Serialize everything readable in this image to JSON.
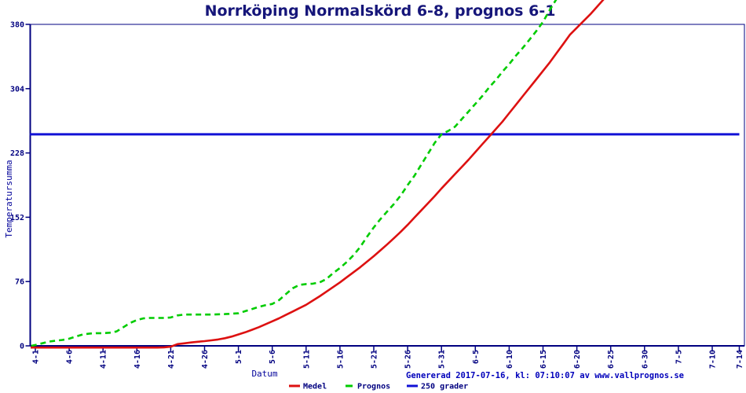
{
  "title": "Norrköping Normalskörd 6-8, prognos 6-1",
  "footer": "Genererad 2017-07-16, kl: 07:10:07 av www.vallprognos.se",
  "colors": {
    "axis": "#000080",
    "title_text": "#16167a",
    "footer_text": "#0000bb",
    "medel": "#dd1111",
    "prognos": "#00cc00",
    "threshold": "#1111d6"
  },
  "legend": {
    "items": [
      {
        "label": "Medel",
        "color": "#dd1111",
        "style": "solid"
      },
      {
        "label": "Prognos",
        "color": "#00cc00",
        "style": "dashed"
      },
      {
        "label": "250 grader",
        "color": "#1111d6",
        "style": "solid"
      }
    ]
  },
  "chart_data": {
    "type": "line",
    "title": "Norrköping Normalskörd 6-8, prognos 6-1",
    "xlabel": "Datum",
    "ylabel": "Temperatursumma",
    "ylim": [
      0,
      380
    ],
    "yticks": [
      0,
      76,
      152,
      228,
      304,
      380
    ],
    "grid": false,
    "legend_position": "bottom",
    "x_unit": "days since 4-1 (month-day)",
    "xticks": [
      {
        "label": "4-1",
        "day": 0
      },
      {
        "label": "4-6",
        "day": 5
      },
      {
        "label": "4-11",
        "day": 10
      },
      {
        "label": "4-16",
        "day": 15
      },
      {
        "label": "4-21",
        "day": 20
      },
      {
        "label": "4-26",
        "day": 25
      },
      {
        "label": "5-1",
        "day": 30
      },
      {
        "label": "5-6",
        "day": 35
      },
      {
        "label": "5-11",
        "day": 40
      },
      {
        "label": "5-16",
        "day": 45
      },
      {
        "label": "5-21",
        "day": 50
      },
      {
        "label": "5-26",
        "day": 55
      },
      {
        "label": "5-31",
        "day": 60
      },
      {
        "label": "6-5",
        "day": 65
      },
      {
        "label": "6-10",
        "day": 70
      },
      {
        "label": "6-15",
        "day": 75
      },
      {
        "label": "6-20",
        "day": 80
      },
      {
        "label": "6-25",
        "day": 85
      },
      {
        "label": "6-30",
        "day": 90
      },
      {
        "label": "7-5",
        "day": 95
      },
      {
        "label": "7-10",
        "day": 100
      },
      {
        "label": "7-14",
        "day": 104
      }
    ],
    "series": [
      {
        "name": "Medel",
        "color": "#dd1111",
        "style": "solid",
        "width": 2.6,
        "points": [
          [
            -0.7,
            0
          ],
          [
            5,
            0
          ],
          [
            10,
            0
          ],
          [
            15,
            0
          ],
          [
            18,
            0
          ],
          [
            19,
            0.3
          ],
          [
            20,
            1
          ],
          [
            21,
            2
          ],
          [
            22,
            3
          ],
          [
            23,
            4
          ],
          [
            24,
            4.8
          ],
          [
            25,
            5.6
          ],
          [
            26,
            6.5
          ],
          [
            27,
            7.5
          ],
          [
            28,
            9
          ],
          [
            29,
            11
          ],
          [
            30,
            13.5
          ],
          [
            31,
            16
          ],
          [
            32,
            19
          ],
          [
            33,
            22
          ],
          [
            34,
            25.5
          ],
          [
            35,
            29
          ],
          [
            36,
            32.5
          ],
          [
            37,
            36.5
          ],
          [
            38,
            40.5
          ],
          [
            39,
            44.5
          ],
          [
            40,
            48.5
          ],
          [
            41,
            53.5
          ],
          [
            42,
            58.5
          ],
          [
            43,
            64
          ],
          [
            44,
            69.5
          ],
          [
            45,
            75
          ],
          [
            46,
            81
          ],
          [
            47,
            87
          ],
          [
            48,
            93
          ],
          [
            49,
            99.5
          ],
          [
            50,
            106
          ],
          [
            51,
            113
          ],
          [
            52,
            120
          ],
          [
            53,
            127.5
          ],
          [
            54,
            135
          ],
          [
            55,
            143
          ],
          [
            56,
            151.5
          ],
          [
            57,
            160
          ],
          [
            58,
            168.5
          ],
          [
            59,
            177
          ],
          [
            60,
            186
          ],
          [
            61,
            194.5
          ],
          [
            62,
            203
          ],
          [
            63,
            211.5
          ],
          [
            64,
            220
          ],
          [
            65,
            229
          ],
          [
            66,
            238
          ],
          [
            67,
            247
          ],
          [
            68,
            256
          ],
          [
            69,
            265
          ],
          [
            70,
            275
          ],
          [
            71,
            285
          ],
          [
            72,
            295
          ],
          [
            73,
            305
          ],
          [
            74,
            315
          ],
          [
            75,
            325
          ],
          [
            76,
            335
          ],
          [
            77,
            346
          ],
          [
            78,
            357
          ],
          [
            79,
            368
          ],
          [
            80,
            376
          ],
          [
            81,
            384
          ],
          [
            82,
            392
          ],
          [
            83,
            401
          ],
          [
            84,
            410
          ]
        ]
      },
      {
        "name": "Prognos",
        "color": "#00cc00",
        "style": "dashed",
        "width": 2.6,
        "points": [
          [
            -0.6,
            0
          ],
          [
            0,
            1
          ],
          [
            1,
            3
          ],
          [
            2,
            5
          ],
          [
            3,
            6
          ],
          [
            4,
            7
          ],
          [
            5,
            8.5
          ],
          [
            6,
            11
          ],
          [
            7,
            13.5
          ],
          [
            8,
            14.5
          ],
          [
            9,
            15
          ],
          [
            10,
            15
          ],
          [
            11,
            15.5
          ],
          [
            12,
            17
          ],
          [
            13,
            22
          ],
          [
            14,
            27
          ],
          [
            15,
            30.5
          ],
          [
            16,
            32.5
          ],
          [
            17,
            33
          ],
          [
            19,
            33
          ],
          [
            20,
            33.5
          ],
          [
            21,
            36
          ],
          [
            22,
            37
          ],
          [
            24,
            37
          ],
          [
            26,
            37
          ],
          [
            28,
            37.5
          ],
          [
            29,
            38
          ],
          [
            30,
            38.5
          ],
          [
            31,
            41
          ],
          [
            32,
            43.5
          ],
          [
            33,
            46
          ],
          [
            34,
            48
          ],
          [
            35,
            49.5
          ],
          [
            36,
            54
          ],
          [
            37,
            61
          ],
          [
            38,
            68
          ],
          [
            39,
            72
          ],
          [
            40,
            73
          ],
          [
            41,
            73.5
          ],
          [
            42,
            75
          ],
          [
            43,
            79
          ],
          [
            44,
            86
          ],
          [
            45,
            92
          ],
          [
            46,
            99
          ],
          [
            47,
            107
          ],
          [
            48,
            117
          ],
          [
            49,
            129
          ],
          [
            50,
            140
          ],
          [
            51,
            150
          ],
          [
            52,
            159
          ],
          [
            53,
            168
          ],
          [
            54,
            178
          ],
          [
            55,
            190
          ],
          [
            56,
            201
          ],
          [
            57,
            214
          ],
          [
            58,
            227
          ],
          [
            59,
            240
          ],
          [
            60,
            250
          ],
          [
            61,
            254
          ],
          [
            62,
            259
          ],
          [
            63,
            268
          ],
          [
            64,
            277
          ],
          [
            65,
            286
          ],
          [
            66,
            295
          ],
          [
            67,
            305
          ],
          [
            68,
            314
          ],
          [
            69,
            324
          ],
          [
            70,
            333
          ],
          [
            71,
            343
          ],
          [
            72,
            352
          ],
          [
            73,
            362
          ],
          [
            74,
            372
          ],
          [
            75,
            383
          ],
          [
            76,
            397
          ],
          [
            77,
            410
          ]
        ]
      },
      {
        "name": "250 grader",
        "color": "#1111d6",
        "style": "solid",
        "width": 3,
        "role": "threshold",
        "value": 250,
        "points": [
          [
            -0.8,
            250
          ],
          [
            104,
            250
          ]
        ]
      }
    ]
  }
}
